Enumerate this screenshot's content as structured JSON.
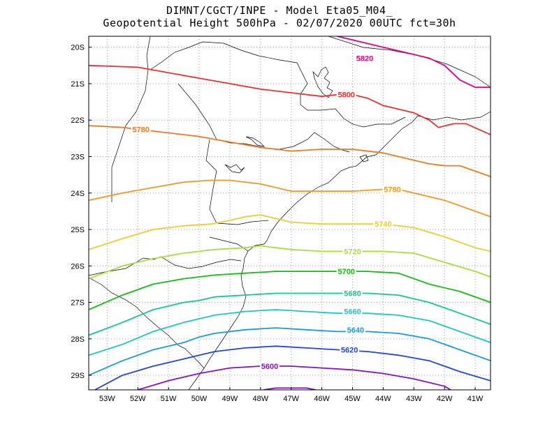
{
  "chart_data": {
    "type": "line",
    "title": "DIMNT/CGCT/INPE -  Model Eta05_M04_",
    "subtitle": "Geopotential Height 500hPa -  02/07/2020 00UTC fct=30h",
    "xlabel": "",
    "ylabel": "",
    "xlim": [
      -53.6,
      -40.5
    ],
    "ylim": [
      -29.4,
      -19.7
    ],
    "grid": true,
    "x_ticks": [
      -53,
      -52,
      -51,
      -50,
      -49,
      -48,
      -47,
      -46,
      -45,
      -44,
      -43,
      -42,
      -41
    ],
    "x_tick_labels": [
      "53W",
      "52W",
      "51W",
      "50W",
      "49W",
      "48W",
      "47W",
      "46W",
      "45W",
      "44W",
      "43W",
      "42W",
      "41W"
    ],
    "y_ticks": [
      -20,
      -21,
      -22,
      -23,
      -24,
      -25,
      -26,
      -27,
      -28,
      -29
    ],
    "y_tick_labels": [
      "20S",
      "21S",
      "22S",
      "23S",
      "24S",
      "25S",
      "26S",
      "27S",
      "28S",
      "29S"
    ],
    "series": [
      {
        "name": "5820",
        "color": "#e0008c",
        "label": "5820",
        "label_at": [
          -44.6,
          -20.3
        ],
        "points": [
          [
            -45.5,
            -19.7
          ],
          [
            -45,
            -19.8
          ],
          [
            -44,
            -20.0
          ],
          [
            -43,
            -20.2
          ],
          [
            -42.5,
            -20.3
          ],
          [
            -42,
            -20.5
          ],
          [
            -41.5,
            -20.9
          ],
          [
            -41,
            -21.1
          ],
          [
            -40.5,
            -21.1
          ]
        ]
      },
      {
        "name": "5800",
        "color": "#ee3030",
        "label": "5800",
        "label_at": [
          -45.2,
          -21.3
        ],
        "points": [
          [
            -53.6,
            -20.5
          ],
          [
            -52,
            -20.55
          ],
          [
            -51,
            -20.7
          ],
          [
            -50,
            -20.85
          ],
          [
            -49,
            -21.0
          ],
          [
            -48,
            -21.15
          ],
          [
            -47,
            -21.25
          ],
          [
            -46,
            -21.35
          ],
          [
            -45.5,
            -21.3
          ],
          [
            -45,
            -21.3
          ],
          [
            -44.5,
            -21.4
          ],
          [
            -44,
            -21.6
          ],
          [
            -43,
            -21.8
          ],
          [
            -42.5,
            -22.0
          ],
          [
            -42.2,
            -22.2
          ],
          [
            -41.7,
            -22.1
          ],
          [
            -41.3,
            -22.1
          ],
          [
            -40.5,
            -22.4
          ]
        ]
      },
      {
        "name": "5780a",
        "color": "#ee7a22",
        "label": "5780",
        "label_at": [
          -51.9,
          -22.25
        ],
        "points": [
          [
            -53.6,
            -22.15
          ],
          [
            -52.5,
            -22.2
          ],
          [
            -51,
            -22.35
          ],
          [
            -50,
            -22.45
          ],
          [
            -49,
            -22.6
          ],
          [
            -48,
            -22.75
          ],
          [
            -47,
            -22.85
          ],
          [
            -46,
            -22.8
          ],
          [
            -45,
            -22.8
          ],
          [
            -44,
            -22.9
          ],
          [
            -43.5,
            -23.0
          ],
          [
            -43,
            -23.1
          ],
          [
            -42.5,
            -23.2
          ],
          [
            -42,
            -23.25
          ],
          [
            -41.5,
            -23.25
          ],
          [
            -41,
            -23.4
          ],
          [
            -40.5,
            -23.55
          ]
        ]
      },
      {
        "name": "5780b",
        "color": "#ee9a22",
        "label": "5780",
        "label_at": [
          -43.7,
          -23.9
        ],
        "points": [
          [
            -53.6,
            -24.2
          ],
          [
            -52.5,
            -24.0
          ],
          [
            -51.5,
            -23.85
          ],
          [
            -50.5,
            -23.7
          ],
          [
            -49.6,
            -23.65
          ],
          [
            -49,
            -23.65
          ],
          [
            -48.5,
            -23.7
          ],
          [
            -48,
            -23.75
          ],
          [
            -47.5,
            -23.85
          ],
          [
            -47,
            -23.95
          ],
          [
            -46,
            -23.95
          ],
          [
            -45,
            -23.95
          ],
          [
            -44,
            -23.9
          ],
          [
            -43.5,
            -23.9
          ],
          [
            -43,
            -24.0
          ],
          [
            -42,
            -24.2
          ],
          [
            -41,
            -24.5
          ],
          [
            -40.5,
            -24.65
          ]
        ]
      },
      {
        "name": "5740",
        "color": "#e6d030",
        "label": "5740",
        "label_at": [
          -44.0,
          -24.85
        ],
        "points": [
          [
            -53.6,
            -25.55
          ],
          [
            -52.5,
            -25.25
          ],
          [
            -51.5,
            -25.0
          ],
          [
            -50.5,
            -24.9
          ],
          [
            -49.6,
            -24.85
          ],
          [
            -49,
            -24.75
          ],
          [
            -48.5,
            -24.65
          ],
          [
            -48,
            -24.6
          ],
          [
            -47.5,
            -24.7
          ],
          [
            -47,
            -24.8
          ],
          [
            -46,
            -24.85
          ],
          [
            -45,
            -24.85
          ],
          [
            -44,
            -24.85
          ],
          [
            -43,
            -24.95
          ],
          [
            -42,
            -25.2
          ],
          [
            -41,
            -25.5
          ],
          [
            -40.5,
            -25.6
          ]
        ]
      },
      {
        "name": "5720",
        "color": "#a6df3a",
        "label": "5720",
        "label_at": [
          -45.0,
          -25.6
        ],
        "points": [
          [
            -53.6,
            -26.35
          ],
          [
            -52.5,
            -26.0
          ],
          [
            -51.5,
            -25.8
          ],
          [
            -50.5,
            -25.65
          ],
          [
            -49.5,
            -25.55
          ],
          [
            -48.5,
            -25.5
          ],
          [
            -48,
            -25.45
          ],
          [
            -47.5,
            -25.5
          ],
          [
            -47,
            -25.55
          ],
          [
            -46,
            -25.6
          ],
          [
            -45,
            -25.6
          ],
          [
            -44,
            -25.6
          ],
          [
            -43,
            -25.65
          ],
          [
            -42,
            -25.9
          ],
          [
            -41,
            -26.15
          ],
          [
            -40.5,
            -26.3
          ]
        ]
      },
      {
        "name": "5700",
        "color": "#10c010",
        "label": "5700",
        "label_at": [
          -45.2,
          -26.15
        ],
        "points": [
          [
            -53.6,
            -27.2
          ],
          [
            -52.5,
            -26.8
          ],
          [
            -51.5,
            -26.5
          ],
          [
            -50.5,
            -26.35
          ],
          [
            -49.5,
            -26.25
          ],
          [
            -48.5,
            -26.2
          ],
          [
            -47.5,
            -26.15
          ],
          [
            -46.5,
            -26.15
          ],
          [
            -45.5,
            -26.15
          ],
          [
            -44.5,
            -26.15
          ],
          [
            -43.5,
            -26.2
          ],
          [
            -42.5,
            -26.5
          ],
          [
            -41.5,
            -26.7
          ],
          [
            -40.5,
            -27.0
          ]
        ]
      },
      {
        "name": "5680",
        "color": "#10c890",
        "label": "5680",
        "label_at": [
          -45.0,
          -26.75
        ],
        "points": [
          [
            -53.6,
            -27.9
          ],
          [
            -52.5,
            -27.55
          ],
          [
            -51.5,
            -27.2
          ],
          [
            -50.5,
            -27.0
          ],
          [
            -50,
            -26.95
          ],
          [
            -49.5,
            -26.85
          ],
          [
            -48.5,
            -26.8
          ],
          [
            -47.5,
            -26.75
          ],
          [
            -46.5,
            -26.75
          ],
          [
            -45.5,
            -26.75
          ],
          [
            -44.5,
            -26.75
          ],
          [
            -43.5,
            -26.8
          ],
          [
            -42.5,
            -27.0
          ],
          [
            -41.5,
            -27.3
          ],
          [
            -40.5,
            -27.6
          ]
        ]
      },
      {
        "name": "5660",
        "color": "#18c8c8",
        "label": "5660",
        "label_at": [
          -45.0,
          -27.25
        ],
        "points": [
          [
            -53.6,
            -28.45
          ],
          [
            -52.5,
            -28.15
          ],
          [
            -51.5,
            -27.8
          ],
          [
            -50.5,
            -27.55
          ],
          [
            -50,
            -27.45
          ],
          [
            -49.5,
            -27.35
          ],
          [
            -48.5,
            -27.25
          ],
          [
            -47.5,
            -27.2
          ],
          [
            -46.5,
            -27.25
          ],
          [
            -45.5,
            -27.3
          ],
          [
            -44.5,
            -27.3
          ],
          [
            -43.5,
            -27.35
          ],
          [
            -42.5,
            -27.5
          ],
          [
            -41.5,
            -27.8
          ],
          [
            -40.5,
            -28.1
          ]
        ]
      },
      {
        "name": "5640",
        "color": "#189ae8",
        "label": "5640",
        "label_at": [
          -44.9,
          -27.75
        ],
        "points": [
          [
            -53.6,
            -29.0
          ],
          [
            -52.5,
            -28.6
          ],
          [
            -51.5,
            -28.3
          ],
          [
            -50.5,
            -28.1
          ],
          [
            -50,
            -27.95
          ],
          [
            -49.5,
            -27.85
          ],
          [
            -48.5,
            -27.75
          ],
          [
            -47.5,
            -27.7
          ],
          [
            -46.5,
            -27.75
          ],
          [
            -45.5,
            -27.8
          ],
          [
            -44.5,
            -27.8
          ],
          [
            -43.5,
            -27.85
          ],
          [
            -42.5,
            -28.0
          ],
          [
            -41.5,
            -28.3
          ],
          [
            -40.5,
            -28.6
          ]
        ]
      },
      {
        "name": "5620",
        "color": "#2244e0",
        "label": "5620",
        "label_at": [
          -45.1,
          -28.3
        ],
        "points": [
          [
            -53.4,
            -29.4
          ],
          [
            -52.5,
            -29.0
          ],
          [
            -51.5,
            -28.75
          ],
          [
            -50.5,
            -28.55
          ],
          [
            -49.5,
            -28.35
          ],
          [
            -48.5,
            -28.25
          ],
          [
            -47.5,
            -28.2
          ],
          [
            -46.5,
            -28.25
          ],
          [
            -45.5,
            -28.3
          ],
          [
            -44.5,
            -28.35
          ],
          [
            -43.5,
            -28.45
          ],
          [
            -42.5,
            -28.6
          ],
          [
            -41.5,
            -28.9
          ],
          [
            -40.5,
            -29.15
          ]
        ]
      },
      {
        "name": "5600",
        "color": "#8a10c8",
        "label": "5600",
        "label_at": [
          -47.7,
          -28.75
        ],
        "points": [
          [
            -52.0,
            -29.4
          ],
          [
            -51,
            -29.15
          ],
          [
            -50,
            -28.95
          ],
          [
            -49,
            -28.8
          ],
          [
            -48,
            -28.75
          ],
          [
            -47,
            -28.75
          ],
          [
            -46,
            -28.8
          ],
          [
            -45,
            -28.85
          ],
          [
            -44,
            -28.95
          ],
          [
            -43,
            -29.1
          ],
          [
            -42,
            -29.3
          ],
          [
            -41.8,
            -29.4
          ]
        ]
      },
      {
        "name": "5580",
        "color": "#7a10b8",
        "label": "",
        "label_at": [
          0,
          0
        ],
        "points": [
          [
            -47.9,
            -29.4
          ],
          [
            -47.5,
            -29.35
          ],
          [
            -47,
            -29.35
          ],
          [
            -46.5,
            -29.35
          ],
          [
            -46.2,
            -29.4
          ]
        ]
      }
    ]
  }
}
